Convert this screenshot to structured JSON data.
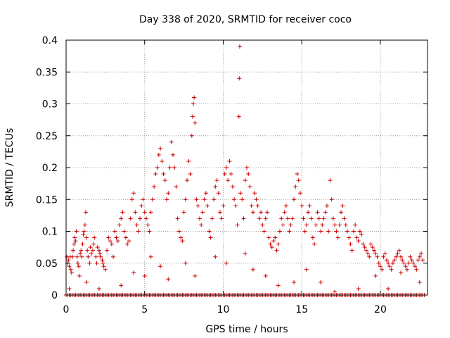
{
  "chart_data": {
    "type": "scatter",
    "title": "Day 338 of 2020, SRMTID for receiver coco",
    "xlabel": "GPS time / hours",
    "ylabel": "SRMTID / TECUs",
    "xlim": [
      0,
      23
    ],
    "ylim": [
      0,
      0.4
    ],
    "xticks": [
      0,
      5,
      10,
      15,
      20
    ],
    "yticks": [
      0,
      0.05,
      0.1,
      0.15,
      0.2,
      0.25,
      0.3,
      0.35,
      0.4
    ],
    "xtick_labels": [
      "0",
      "5",
      "10",
      "15",
      "20"
    ],
    "ytick_labels": [
      "0",
      "0.05",
      "0.1",
      "0.15",
      "0.2",
      "0.25",
      "0.3",
      "0.35",
      "0.4"
    ],
    "grid": true,
    "marker": "+",
    "color": "#cc0000",
    "series": [
      {
        "name": "SRMTID",
        "points": [
          [
            0.05,
            0.06
          ],
          [
            0.1,
            0.05
          ],
          [
            0.15,
            0.055
          ],
          [
            0.2,
            0.045
          ],
          [
            0.25,
            0.06
          ],
          [
            0.3,
            0.04
          ],
          [
            0.35,
            0.035
          ],
          [
            0.4,
            0.06
          ],
          [
            0.45,
            0.07
          ],
          [
            0.5,
            0.08
          ],
          [
            0.55,
            0.09
          ],
          [
            0.6,
            0.085
          ],
          [
            0.65,
            0.1
          ],
          [
            0.7,
            0.06
          ],
          [
            0.75,
            0.05
          ],
          [
            0.8,
            0.045
          ],
          [
            0.85,
            0.03
          ],
          [
            0.9,
            0.065
          ],
          [
            0.95,
            0.07
          ],
          [
            1.0,
            0.06
          ],
          [
            1.05,
            0.08
          ],
          [
            1.1,
            0.095
          ],
          [
            1.15,
            0.1
          ],
          [
            1.2,
            0.11
          ],
          [
            1.25,
            0.13
          ],
          [
            1.3,
            0.09
          ],
          [
            1.35,
            0.07
          ],
          [
            1.4,
            0.06
          ],
          [
            1.5,
            0.05
          ],
          [
            1.55,
            0.075
          ],
          [
            1.6,
            0.065
          ],
          [
            1.7,
            0.07
          ],
          [
            1.75,
            0.08
          ],
          [
            1.8,
            0.09
          ],
          [
            1.9,
            0.06
          ],
          [
            1.95,
            0.05
          ],
          [
            2.0,
            0.075
          ],
          [
            2.1,
            0.07
          ],
          [
            2.15,
            0.065
          ],
          [
            2.2,
            0.06
          ],
          [
            2.3,
            0.055
          ],
          [
            2.35,
            0.05
          ],
          [
            2.4,
            0.045
          ],
          [
            2.5,
            0.04
          ],
          [
            2.6,
            0.07
          ],
          [
            2.7,
            0.09
          ],
          [
            2.8,
            0.085
          ],
          [
            2.9,
            0.08
          ],
          [
            3.0,
            0.06
          ],
          [
            3.1,
            0.1
          ],
          [
            3.2,
            0.09
          ],
          [
            3.3,
            0.085
          ],
          [
            3.4,
            0.11
          ],
          [
            3.5,
            0.12
          ],
          [
            3.6,
            0.13
          ],
          [
            3.7,
            0.1
          ],
          [
            3.8,
            0.09
          ],
          [
            3.9,
            0.08
          ],
          [
            4.0,
            0.085
          ],
          [
            4.1,
            0.12
          ],
          [
            4.2,
            0.15
          ],
          [
            4.3,
            0.16
          ],
          [
            4.4,
            0.13
          ],
          [
            4.5,
            0.11
          ],
          [
            4.6,
            0.1
          ],
          [
            4.7,
            0.12
          ],
          [
            4.8,
            0.14
          ],
          [
            4.9,
            0.15
          ],
          [
            5.0,
            0.13
          ],
          [
            5.1,
            0.12
          ],
          [
            5.2,
            0.11
          ],
          [
            5.3,
            0.1
          ],
          [
            5.4,
            0.13
          ],
          [
            5.5,
            0.15
          ],
          [
            5.6,
            0.17
          ],
          [
            5.7,
            0.19
          ],
          [
            5.8,
            0.2
          ],
          [
            5.9,
            0.22
          ],
          [
            6.0,
            0.23
          ],
          [
            6.1,
            0.21
          ],
          [
            6.2,
            0.19
          ],
          [
            6.3,
            0.18
          ],
          [
            6.4,
            0.15
          ],
          [
            6.5,
            0.16
          ],
          [
            6.6,
            0.2
          ],
          [
            6.7,
            0.24
          ],
          [
            6.8,
            0.22
          ],
          [
            6.9,
            0.2
          ],
          [
            7.0,
            0.17
          ],
          [
            7.1,
            0.12
          ],
          [
            7.2,
            0.1
          ],
          [
            7.3,
            0.09
          ],
          [
            7.4,
            0.085
          ],
          [
            7.5,
            0.13
          ],
          [
            7.6,
            0.15
          ],
          [
            7.7,
            0.18
          ],
          [
            7.8,
            0.21
          ],
          [
            7.9,
            0.19
          ],
          [
            8.0,
            0.25
          ],
          [
            8.05,
            0.28
          ],
          [
            8.1,
            0.3
          ],
          [
            8.15,
            0.31
          ],
          [
            8.2,
            0.27
          ],
          [
            8.3,
            0.15
          ],
          [
            8.4,
            0.14
          ],
          [
            8.5,
            0.12
          ],
          [
            8.6,
            0.11
          ],
          [
            8.7,
            0.13
          ],
          [
            8.8,
            0.15
          ],
          [
            8.9,
            0.16
          ],
          [
            9.0,
            0.14
          ],
          [
            9.1,
            0.1
          ],
          [
            9.2,
            0.09
          ],
          [
            9.3,
            0.12
          ],
          [
            9.4,
            0.15
          ],
          [
            9.5,
            0.17
          ],
          [
            9.6,
            0.18
          ],
          [
            9.7,
            0.16
          ],
          [
            9.8,
            0.13
          ],
          [
            9.9,
            0.12
          ],
          [
            10.0,
            0.14
          ],
          [
            10.1,
            0.19
          ],
          [
            10.2,
            0.2
          ],
          [
            10.3,
            0.18
          ],
          [
            10.4,
            0.21
          ],
          [
            10.5,
            0.19
          ],
          [
            10.6,
            0.17
          ],
          [
            10.7,
            0.15
          ],
          [
            10.8,
            0.14
          ],
          [
            10.9,
            0.11
          ],
          [
            11.0,
            0.28
          ],
          [
            11.02,
            0.34
          ],
          [
            11.05,
            0.39
          ],
          [
            11.1,
            0.16
          ],
          [
            11.2,
            0.15
          ],
          [
            11.3,
            0.12
          ],
          [
            11.4,
            0.18
          ],
          [
            11.5,
            0.2
          ],
          [
            11.6,
            0.19
          ],
          [
            11.7,
            0.17
          ],
          [
            11.8,
            0.14
          ],
          [
            11.9,
            0.13
          ],
          [
            12.0,
            0.16
          ],
          [
            12.1,
            0.15
          ],
          [
            12.2,
            0.14
          ],
          [
            12.3,
            0.12
          ],
          [
            12.4,
            0.13
          ],
          [
            12.5,
            0.11
          ],
          [
            12.6,
            0.1
          ],
          [
            12.7,
            0.12
          ],
          [
            12.8,
            0.13
          ],
          [
            12.9,
            0.09
          ],
          [
            13.0,
            0.08
          ],
          [
            13.1,
            0.075
          ],
          [
            13.2,
            0.085
          ],
          [
            13.3,
            0.09
          ],
          [
            13.4,
            0.07
          ],
          [
            13.5,
            0.08
          ],
          [
            13.6,
            0.1
          ],
          [
            13.7,
            0.12
          ],
          [
            13.8,
            0.11
          ],
          [
            13.9,
            0.13
          ],
          [
            14.0,
            0.14
          ],
          [
            14.1,
            0.12
          ],
          [
            14.2,
            0.1
          ],
          [
            14.3,
            0.11
          ],
          [
            14.4,
            0.12
          ],
          [
            14.5,
            0.15
          ],
          [
            14.6,
            0.17
          ],
          [
            14.7,
            0.19
          ],
          [
            14.8,
            0.18
          ],
          [
            14.9,
            0.16
          ],
          [
            15.0,
            0.14
          ],
          [
            15.1,
            0.12
          ],
          [
            15.2,
            0.1
          ],
          [
            15.3,
            0.11
          ],
          [
            15.4,
            0.13
          ],
          [
            15.5,
            0.14
          ],
          [
            15.6,
            0.12
          ],
          [
            15.7,
            0.09
          ],
          [
            15.8,
            0.08
          ],
          [
            15.9,
            0.11
          ],
          [
            16.0,
            0.13
          ],
          [
            16.1,
            0.12
          ],
          [
            16.2,
            0.1
          ],
          [
            16.3,
            0.11
          ],
          [
            16.4,
            0.12
          ],
          [
            16.5,
            0.13
          ],
          [
            16.6,
            0.14
          ],
          [
            16.7,
            0.1
          ],
          [
            16.8,
            0.18
          ],
          [
            16.9,
            0.15
          ],
          [
            17.0,
            0.12
          ],
          [
            17.1,
            0.11
          ],
          [
            17.2,
            0.1
          ],
          [
            17.3,
            0.09
          ],
          [
            17.4,
            0.11
          ],
          [
            17.5,
            0.13
          ],
          [
            17.6,
            0.14
          ],
          [
            17.7,
            0.12
          ],
          [
            17.8,
            0.11
          ],
          [
            17.9,
            0.1
          ],
          [
            18.0,
            0.09
          ],
          [
            18.1,
            0.08
          ],
          [
            18.2,
            0.07
          ],
          [
            18.3,
            0.1
          ],
          [
            18.4,
            0.11
          ],
          [
            18.5,
            0.09
          ],
          [
            18.6,
            0.085
          ],
          [
            18.7,
            0.1
          ],
          [
            18.8,
            0.095
          ],
          [
            18.9,
            0.08
          ],
          [
            19.0,
            0.075
          ],
          [
            19.1,
            0.07
          ],
          [
            19.2,
            0.065
          ],
          [
            19.3,
            0.06
          ],
          [
            19.4,
            0.08
          ],
          [
            19.5,
            0.075
          ],
          [
            19.6,
            0.07
          ],
          [
            19.7,
            0.065
          ],
          [
            19.8,
            0.06
          ],
          [
            19.9,
            0.05
          ],
          [
            20.0,
            0.045
          ],
          [
            20.1,
            0.04
          ],
          [
            20.2,
            0.06
          ],
          [
            20.3,
            0.065
          ],
          [
            20.4,
            0.055
          ],
          [
            20.5,
            0.05
          ],
          [
            20.6,
            0.045
          ],
          [
            20.7,
            0.04
          ],
          [
            20.8,
            0.05
          ],
          [
            20.9,
            0.055
          ],
          [
            21.0,
            0.06
          ],
          [
            21.1,
            0.065
          ],
          [
            21.2,
            0.07
          ],
          [
            21.3,
            0.06
          ],
          [
            21.4,
            0.055
          ],
          [
            21.5,
            0.05
          ],
          [
            21.6,
            0.045
          ],
          [
            21.7,
            0.04
          ],
          [
            21.8,
            0.05
          ],
          [
            21.9,
            0.06
          ],
          [
            22.0,
            0.055
          ],
          [
            22.1,
            0.05
          ],
          [
            22.2,
            0.045
          ],
          [
            22.3,
            0.04
          ],
          [
            22.4,
            0.055
          ],
          [
            22.5,
            0.06
          ],
          [
            22.6,
            0.065
          ],
          [
            22.7,
            0.055
          ],
          [
            0.2,
            0.01
          ],
          [
            1.3,
            0.02
          ],
          [
            2.1,
            0.01
          ],
          [
            3.5,
            0.015
          ],
          [
            4.3,
            0.035
          ],
          [
            5.0,
            0.03
          ],
          [
            5.4,
            0.06
          ],
          [
            6.0,
            0.045
          ],
          [
            6.5,
            0.025
          ],
          [
            7.6,
            0.05
          ],
          [
            8.2,
            0.03
          ],
          [
            9.5,
            0.06
          ],
          [
            10.2,
            0.05
          ],
          [
            11.4,
            0.065
          ],
          [
            11.9,
            0.04
          ],
          [
            12.7,
            0.03
          ],
          [
            13.5,
            0.015
          ],
          [
            14.5,
            0.02
          ],
          [
            15.3,
            0.04
          ],
          [
            16.2,
            0.02
          ],
          [
            17.1,
            0.005
          ],
          [
            18.6,
            0.01
          ],
          [
            19.7,
            0.03
          ],
          [
            20.5,
            0.01
          ],
          [
            21.3,
            0.035
          ],
          [
            22.5,
            0.02
          ]
        ]
      }
    ],
    "zero_line_x_range": [
      0,
      22.8
    ]
  }
}
